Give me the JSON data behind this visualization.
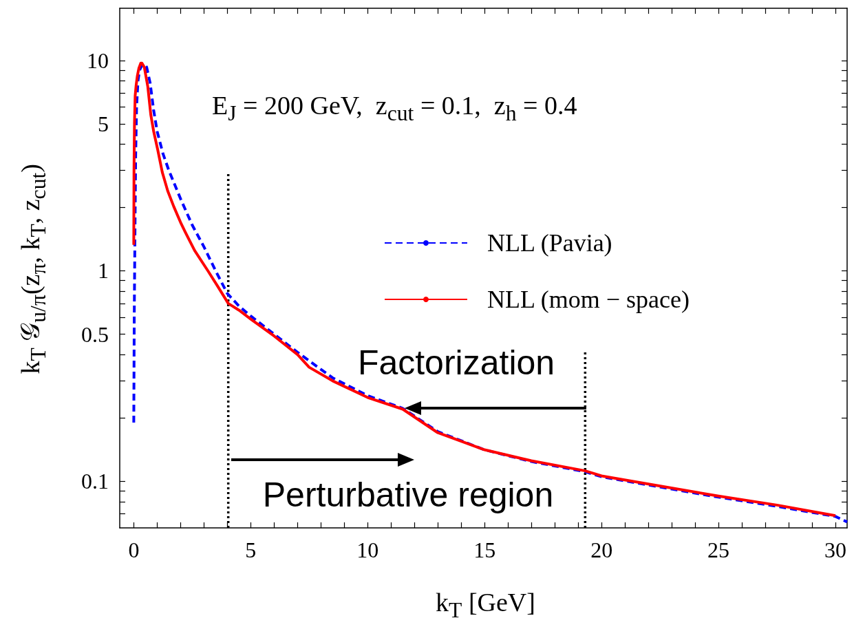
{
  "chart_data": {
    "type": "line",
    "xlabel": "k$_{T}$ [GeV]",
    "ylabel": "k$_{T}$ 𝒢$_{u/π}$(z$_{π}$, k$_{T}$, z$_{cut}$)",
    "annotations": [
      "E$_{J}$ = 200 GeV,  z$_{cut}$ = 0.1,  z$_{h}$ = 0.4",
      "Factorization",
      "Perturbative region"
    ],
    "log": "y",
    "grid": false,
    "legend": "right",
    "marker": "none",
    "xlim": [
      -0.6,
      30.5
    ],
    "xticks": [
      0,
      {
        "value": 1,
        "label": null
      },
      {
        "value": 2,
        "label": null
      },
      {
        "value": 3,
        "label": null
      },
      {
        "value": 4,
        "label": null
      },
      5,
      {
        "value": 6,
        "label": null
      },
      {
        "value": 7,
        "label": null
      },
      {
        "value": 8,
        "label": null
      },
      {
        "value": 9,
        "label": null
      },
      10,
      {
        "value": 11,
        "label": null
      },
      {
        "value": 12,
        "label": null
      },
      {
        "value": 13,
        "label": null
      },
      {
        "value": 14,
        "label": null
      },
      15,
      {
        "value": 16,
        "label": null
      },
      {
        "value": 17,
        "label": null
      },
      {
        "value": 18,
        "label": null
      },
      {
        "value": 19,
        "label": null
      },
      20,
      {
        "value": 21,
        "label": null
      },
      {
        "value": 22,
        "label": null
      },
      {
        "value": 23,
        "label": null
      },
      {
        "value": 24,
        "label": null
      },
      25,
      {
        "value": 26,
        "label": null
      },
      {
        "value": 27,
        "label": null
      },
      {
        "value": 28,
        "label": null
      },
      {
        "value": 29,
        "label": null
      },
      30
    ],
    "ylim": [
      0.06,
      17.7
    ],
    "yticks": [
      {
        "value": 0.07,
        "label": null
      },
      {
        "value": 0.08,
        "label": null
      },
      {
        "value": 0.09,
        "label": null
      },
      0.1,
      {
        "value": 0.2,
        "label": null
      },
      {
        "value": 0.3,
        "label": null
      },
      {
        "value": 0.4,
        "label": null
      },
      0.5,
      {
        "value": 0.6,
        "label": null
      },
      {
        "value": 0.7,
        "label": null
      },
      {
        "value": 0.8,
        "label": null
      },
      {
        "value": 0.9,
        "label": null
      },
      1,
      {
        "value": 2,
        "label": null
      },
      {
        "value": 3,
        "label": null
      },
      {
        "value": 4,
        "label": null
      },
      5,
      {
        "value": 6,
        "label": null
      },
      {
        "value": 7,
        "label": null
      },
      {
        "value": 8,
        "label": null
      },
      {
        "value": 9,
        "label": null
      },
      10
    ],
    "series": [
      {
        "name": "NLL (Pavia)",
        "color": "#0000ff",
        "line_style": "dashed",
        "x": [
          0,
          0.02,
          0.05,
          0.08,
          0.12,
          0.18,
          0.25,
          0.35,
          0.45,
          0.55,
          0.7,
          0.85,
          1,
          1.25,
          1.5,
          2,
          2.5,
          3,
          3.5,
          4,
          4.5,
          5,
          6,
          7,
          8.5,
          10,
          11.5,
          13,
          15,
          17,
          19.3,
          20,
          22,
          25,
          27.5,
          30,
          30.5
        ],
        "values": [
          0.19,
          0.6,
          1.5,
          3.5,
          6,
          8,
          9,
          9.5,
          9.6,
          9.3,
          7.8,
          5.8,
          4.6,
          3.6,
          3.0,
          2.2,
          1.65,
          1.3,
          1.0,
          0.78,
          0.68,
          0.61,
          0.5,
          0.41,
          0.31,
          0.255,
          0.222,
          0.172,
          0.141,
          0.124,
          0.111,
          0.105,
          0.096,
          0.084,
          0.076,
          0.068,
          0.064
        ]
      },
      {
        "name": "NLL (mom − space)",
        "color": "#ff0000",
        "line_style": "solid",
        "x": [
          0,
          0.01,
          0.03,
          0.06,
          0.1,
          0.15,
          0.22,
          0.3,
          0.35,
          0.45,
          0.6,
          0.73,
          0.85,
          1.02,
          1.22,
          1.45,
          1.71,
          2.0,
          2.2,
          2.6,
          3.17,
          3.6,
          4.04,
          4.5,
          5,
          6,
          7,
          7.5,
          8.5,
          10,
          11.5,
          13,
          15,
          17,
          19.3,
          20,
          22,
          25,
          27.5,
          30
        ],
        "values": [
          1.33,
          3,
          5,
          6.8,
          7.6,
          8.4,
          9.2,
          9.7,
          9.7,
          9.3,
          7.5,
          5.5,
          4.6,
          3.78,
          2.94,
          2.4,
          2.02,
          1.7,
          1.53,
          1.25,
          1.0,
          0.84,
          0.7,
          0.65,
          0.59,
          0.49,
          0.4,
          0.348,
          0.3,
          0.25,
          0.22,
          0.17,
          0.141,
          0.125,
          0.112,
          0.106,
          0.097,
          0.085,
          0.077,
          0.0686
        ]
      },
      {
        "color": "#000000",
        "line_style": "dotted",
        "x": [
          4.04,
          4.04
        ],
        "values": [
          0.06,
          2.94
        ]
      },
      {
        "color": "#000000",
        "line_style": "dotted",
        "x": [
          19.3,
          19.3
        ],
        "values": [
          0.06,
          0.42
        ]
      }
    ]
  }
}
